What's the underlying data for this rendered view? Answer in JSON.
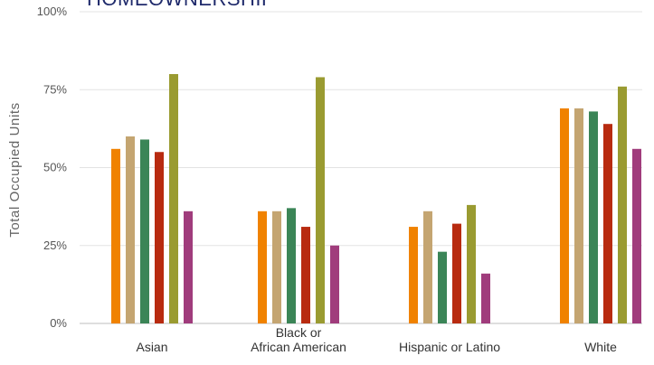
{
  "header": {
    "title": "HOMEOWNERSHIP"
  },
  "chart_data": {
    "type": "bar",
    "title": "",
    "ylabel": "Total Occupied Units",
    "xlabel": "",
    "ylim": [
      0,
      100
    ],
    "yticks": [
      0,
      25,
      50,
      75,
      100
    ],
    "ytick_labels": [
      "0%",
      "25%",
      "50%",
      "75%",
      "100%"
    ],
    "grid": true,
    "categories": [
      [
        "Asian"
      ],
      [
        "Black or",
        "African American"
      ],
      [
        "Hispanic or Latino"
      ],
      [
        "White"
      ]
    ],
    "series": [
      {
        "color": "#f08200",
        "values": [
          56,
          36,
          31,
          69
        ]
      },
      {
        "color": "#c4a571",
        "values": [
          60,
          36,
          36,
          69
        ]
      },
      {
        "color": "#3b8557",
        "values": [
          59,
          37,
          23,
          68
        ]
      },
      {
        "color": "#b82b10",
        "values": [
          55,
          31,
          32,
          64
        ]
      },
      {
        "color": "#9a9b31",
        "values": [
          80,
          79,
          38,
          76
        ]
      },
      {
        "color": "#a03c7c",
        "values": [
          36,
          25,
          16,
          56
        ]
      }
    ]
  }
}
